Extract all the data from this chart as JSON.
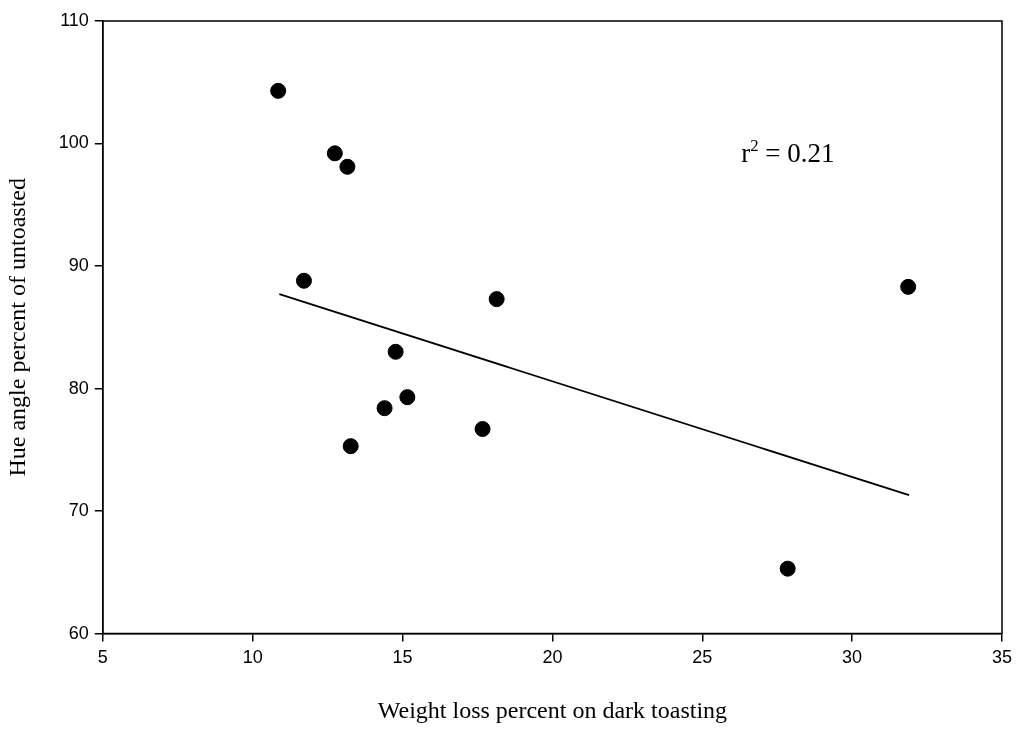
{
  "chart_data": {
    "type": "scatter",
    "xlabel": "Weight loss percent on dark toasting",
    "ylabel": "Hue angle percent of untoasted",
    "xlim": [
      5,
      35
    ],
    "xticks": [
      5,
      10,
      15,
      20,
      25,
      30,
      35
    ],
    "ylim": [
      60,
      110
    ],
    "yticks": [
      60,
      70,
      80,
      90,
      100,
      110
    ],
    "grid": false,
    "legend": false,
    "marker": "circle",
    "annotations": [
      "r$^{2}$ = 0.21"
    ],
    "series": [
      {
        "type": "scatter",
        "color": "#000000",
        "x": [
          10.85,
          12.74,
          13.16,
          11.71,
          18.14,
          14.77,
          15.16,
          14.4,
          13.27,
          17.67,
          27.85,
          31.87
        ],
        "values": [
          104.3,
          99.2,
          98.1,
          88.8,
          87.3,
          83.0,
          79.3,
          78.4,
          75.3,
          76.7,
          65.3,
          88.3
        ]
      },
      {
        "type": "line",
        "color": "#000000",
        "marker": "none",
        "line_style": "solid",
        "x": [
          10.89,
          31.9
        ],
        "values": [
          87.7,
          71.3
        ]
      }
    ]
  }
}
